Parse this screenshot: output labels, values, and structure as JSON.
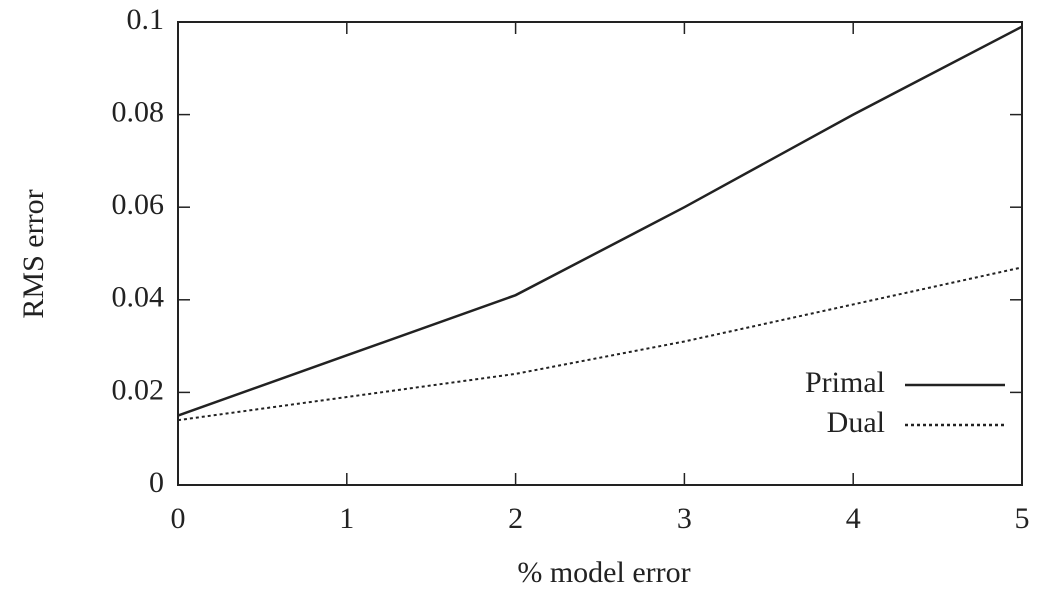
{
  "chart_data": {
    "type": "line",
    "x_label": "% model error",
    "y_label": "RMS error",
    "x": [
      0,
      1,
      2,
      3,
      4,
      5
    ],
    "series": [
      {
        "name": "Primal",
        "color": "#222222",
        "dash": "solid",
        "values": [
          0.015,
          0.028,
          0.041,
          0.06,
          0.08,
          0.099
        ]
      },
      {
        "name": "Dual",
        "color": "#222222",
        "dash": "dotted",
        "values": [
          0.014,
          0.019,
          0.024,
          0.031,
          0.039,
          0.047
        ]
      }
    ],
    "xlim": [
      0,
      5
    ],
    "xticks": [
      0,
      1,
      2,
      3,
      4,
      5
    ],
    "ylim": [
      0,
      0.1
    ],
    "yticks": [
      0,
      0.02,
      0.04,
      0.06,
      0.08,
      0.1
    ],
    "grid": false,
    "legend_position": "lower right"
  }
}
